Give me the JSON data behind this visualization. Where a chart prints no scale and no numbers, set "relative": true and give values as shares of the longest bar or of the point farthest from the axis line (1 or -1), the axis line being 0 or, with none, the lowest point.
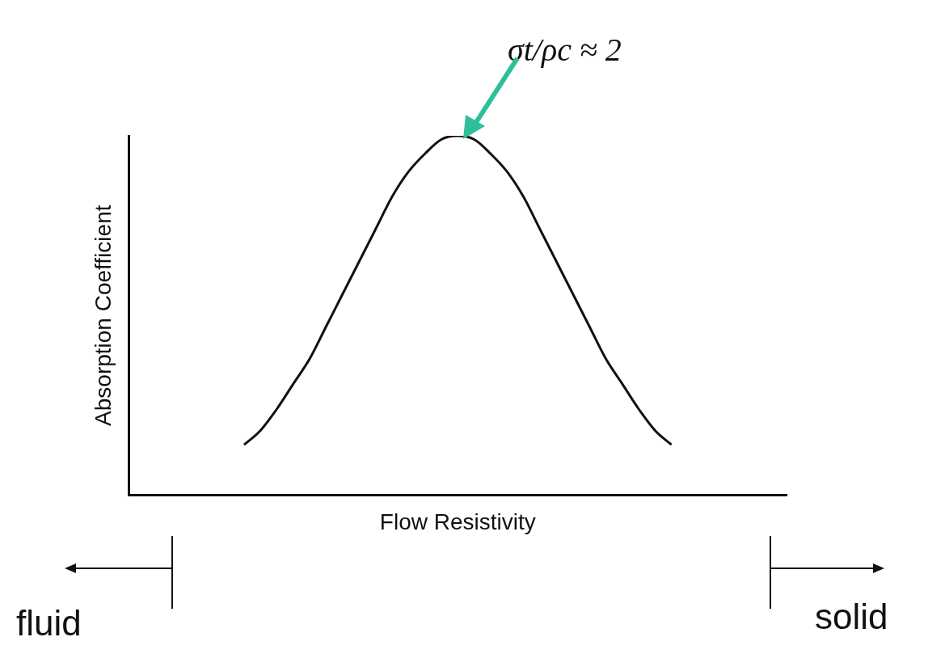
{
  "chart_data": {
    "type": "line",
    "relative": true,
    "xlabel": "Flow Resistivity",
    "ylabel": "Absorption Coefficient",
    "categories": [
      null,
      null,
      null,
      null,
      null,
      null,
      null,
      null,
      null,
      null,
      null,
      null,
      null,
      null,
      null,
      null,
      null,
      null,
      null,
      null,
      null,
      null,
      null,
      null,
      null,
      null,
      null,
      null,
      null,
      null,
      null,
      null,
      null,
      null,
      null,
      null,
      null,
      null,
      null,
      null,
      null
    ],
    "series": [
      {
        "color": "#111111",
        "values": [
          null,
          null,
          null,
          null,
          null,
          null,
          null,
          0.14,
          0.18,
          0.24,
          0.31,
          0.38,
          0.47,
          0.56,
          0.65,
          0.74,
          0.83,
          0.9,
          0.95,
          0.99,
          1,
          0.99,
          0.95,
          0.9,
          0.83,
          0.74,
          0.65,
          0.56,
          0.47,
          0.38,
          0.31,
          0.24,
          0.18,
          0.14,
          null,
          null,
          null,
          null,
          null,
          null,
          null
        ]
      }
    ],
    "annotations": [
      "σt/ρc ≈ 2",
      "fluid",
      "solid"
    ],
    "grid": false,
    "legend": false,
    "marker": "none",
    "line_style": "solid"
  }
}
